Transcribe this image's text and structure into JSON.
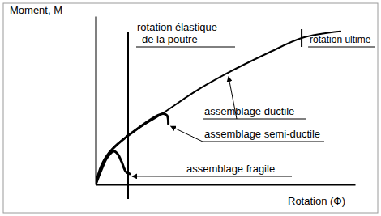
{
  "chart_data": {
    "type": "line",
    "x_label": "Rotation (Φ)",
    "y_label": "Moment, M",
    "xlim": [
      0,
      10
    ],
    "ylim": [
      0,
      10
    ],
    "tick_labels": false,
    "grid": false,
    "series": [
      {
        "name": "assemblage ductile",
        "color": "#000000",
        "x": [
          0,
          0.22,
          0.53,
          1.25,
          2.56,
          3.81,
          5.06,
          6.63,
          7.94,
          9.44
        ],
        "values": [
          0,
          1.1,
          1.9,
          2.9,
          4.2,
          5.5,
          6.6,
          7.8,
          8.7,
          9.1
        ]
      },
      {
        "name": "assemblage semi-ductile",
        "color": "#000000",
        "x": [
          0,
          0.22,
          0.53,
          1.25,
          2.56,
          2.75,
          2.8
        ],
        "values": [
          0,
          1.1,
          1.9,
          2.9,
          4.2,
          4.1,
          3.6
        ]
      },
      {
        "name": "assemblage fragile",
        "color": "#000000",
        "x": [
          0,
          0.22,
          0.44,
          0.69,
          0.84,
          1.0,
          1.16,
          1.31
        ],
        "values": [
          0,
          0.87,
          1.59,
          1.97,
          1.83,
          1.35,
          0.77,
          0.63
        ]
      }
    ],
    "annotations": [
      {
        "text": [
          "rotation élastique",
          "de la poutre"
        ],
        "x": 1.25
      },
      {
        "text": [
          "rotation ultime"
        ],
        "x": 7.94
      }
    ]
  }
}
